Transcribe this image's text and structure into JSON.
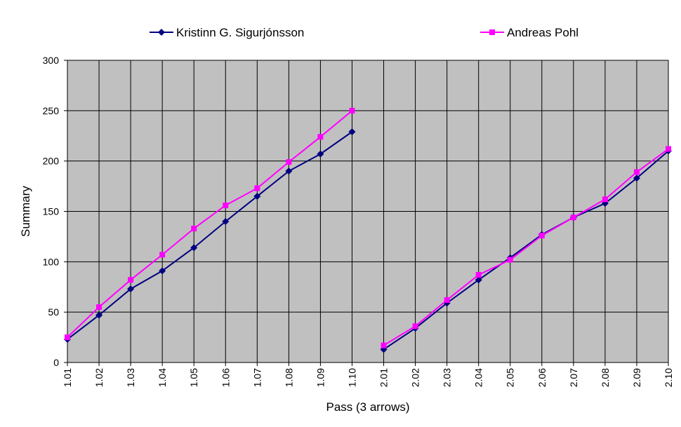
{
  "chart_data": {
    "type": "line",
    "xlabel": "Pass (3 arrows)",
    "ylabel": "Summary",
    "ylim": [
      0,
      300
    ],
    "yticks": [
      0,
      50,
      100,
      150,
      200,
      250,
      300
    ],
    "grid": true,
    "legend_position": "top",
    "plot_background": "#C0C0C0",
    "categories": [
      "1.01",
      "1.02",
      "1.03",
      "1.04",
      "1.05",
      "1.06",
      "1.07",
      "1.08",
      "1.09",
      "1.10",
      "2.01",
      "2.02",
      "2.03",
      "2.04",
      "2.05",
      "2.06",
      "2.07",
      "2.08",
      "2.09",
      "2.10"
    ],
    "series": [
      {
        "name": "Kristinn G. Sigurjónsson",
        "color": "#000080",
        "marker": "diamond",
        "values": [
          23,
          47,
          73,
          91,
          114,
          140,
          165,
          190,
          207,
          229,
          13,
          34,
          59,
          82,
          104,
          127,
          144,
          158,
          183,
          210
        ]
      },
      {
        "name": "Andreas Pohl",
        "color": "#FF00FF",
        "marker": "square",
        "values": [
          25,
          55,
          82,
          107,
          133,
          156,
          173,
          199,
          224,
          250,
          17,
          36,
          62,
          87,
          102,
          126,
          144,
          162,
          189,
          212
        ]
      }
    ],
    "gap_after_index": 9
  }
}
